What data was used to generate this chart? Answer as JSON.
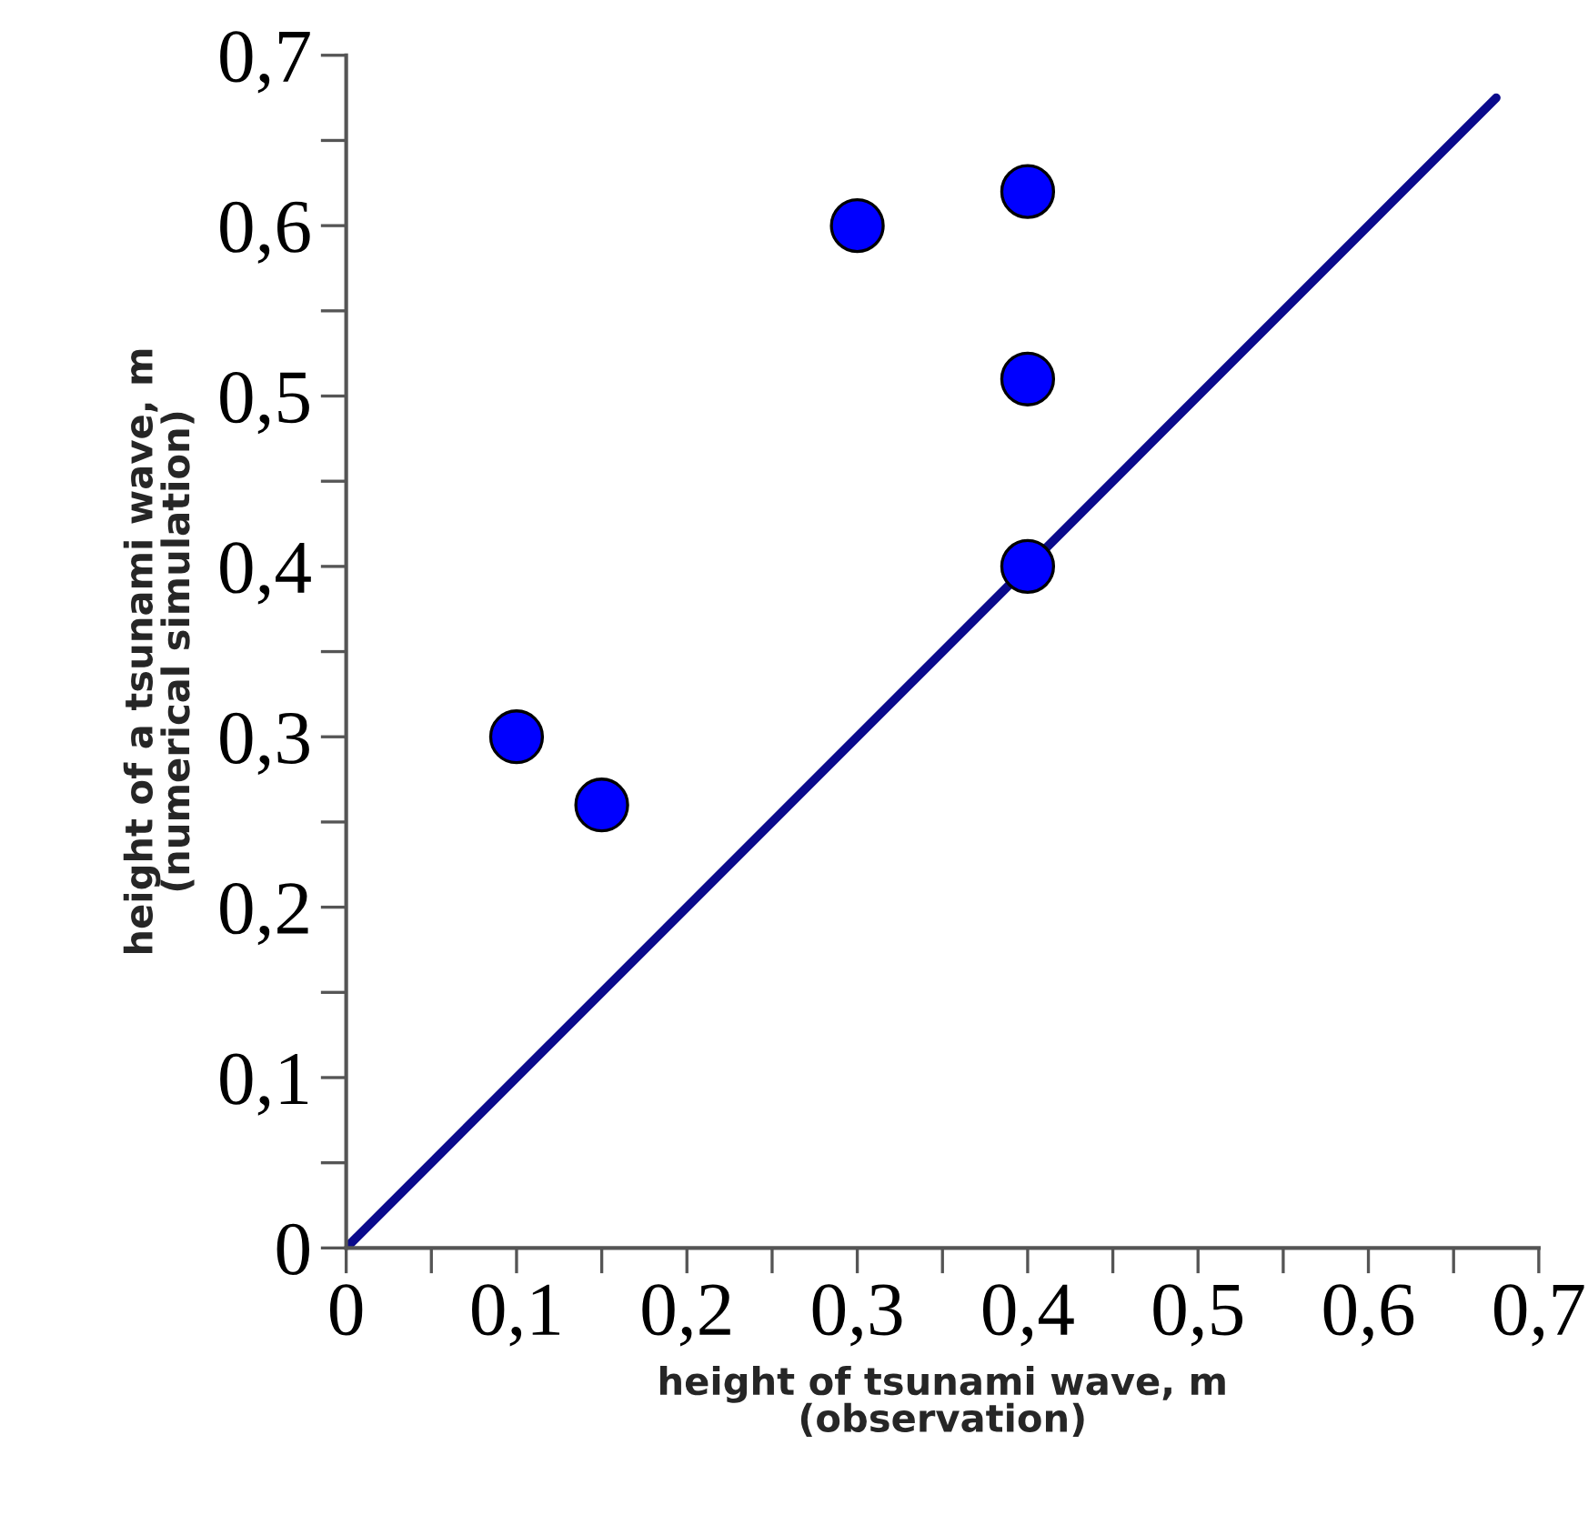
{
  "chart_data": {
    "type": "scatter",
    "xlabel": "height of tsunami wave, m\n(observation)",
    "ylabel": "height of a tsunami wave, m\n(numerical simulation)",
    "x": [
      0.1,
      0.15,
      0.3,
      0.4,
      0.4,
      0.4
    ],
    "series": [
      {
        "type": "line",
        "color": "#0a0a8c",
        "x": [
          0,
          0.675
        ],
        "values": [
          0,
          0.675
        ],
        "marker": "none",
        "line_style": "solid"
      },
      {
        "color": "#0000ff",
        "values": [
          0.3,
          0.26,
          0.6,
          0.62,
          0.51,
          0.4
        ],
        "marker": "circle"
      }
    ],
    "xlim": [
      0,
      0.7
    ],
    "ylim": [
      0,
      0.7
    ],
    "xticks": [
      0,
      {
        "value": 0.05,
        "label": null
      },
      {
        "value": 0.1,
        "label": "0,1"
      },
      {
        "value": 0.15,
        "label": null
      },
      {
        "value": 0.2,
        "label": "0,2"
      },
      {
        "value": 0.25,
        "label": null
      },
      {
        "value": 0.3,
        "label": "0,3"
      },
      {
        "value": 0.35,
        "label": null
      },
      {
        "value": 0.4,
        "label": "0,4"
      },
      {
        "value": 0.45,
        "label": null
      },
      {
        "value": 0.5,
        "label": "0,5"
      },
      {
        "value": 0.55,
        "label": null
      },
      {
        "value": 0.6,
        "label": "0,6"
      },
      {
        "value": 0.65,
        "label": null
      },
      {
        "value": 0.7,
        "label": "0,7"
      }
    ],
    "yticks": [
      0,
      {
        "value": 0.05,
        "label": null
      },
      {
        "value": 0.1,
        "label": "0,1"
      },
      {
        "value": 0.15,
        "label": null
      },
      {
        "value": 0.2,
        "label": "0,2"
      },
      {
        "value": 0.25,
        "label": null
      },
      {
        "value": 0.3,
        "label": "0,3"
      },
      {
        "value": 0.35,
        "label": null
      },
      {
        "value": 0.4,
        "label": "0,4"
      },
      {
        "value": 0.45,
        "label": null
      },
      {
        "value": 0.5,
        "label": "0,5"
      },
      {
        "value": 0.55,
        "label": null
      },
      {
        "value": 0.6,
        "label": "0,6"
      },
      {
        "value": 0.65,
        "label": null
      },
      {
        "value": 0.7,
        "label": "0,7"
      }
    ],
    "grid": false,
    "legend": false
  }
}
